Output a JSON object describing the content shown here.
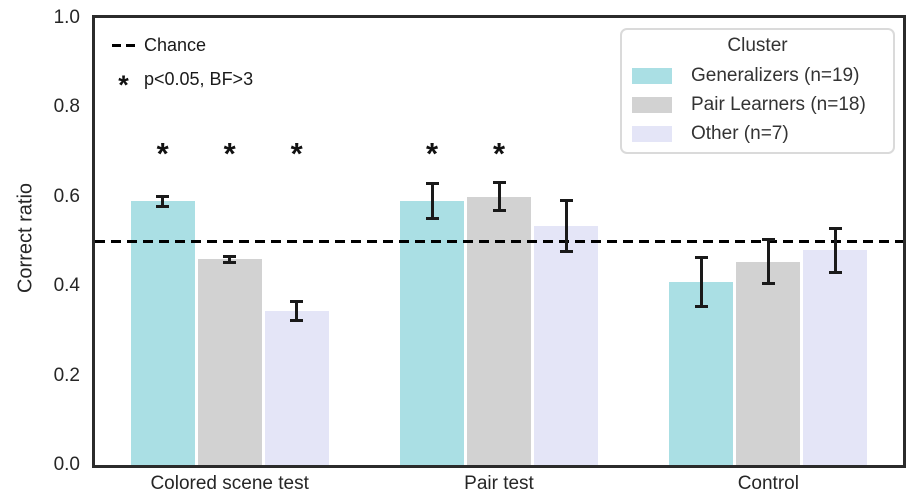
{
  "chart_data": {
    "type": "bar",
    "title": "",
    "ylabel": "Correct ratio",
    "xlabel": "",
    "ylim": [
      0.0,
      1.0
    ],
    "yticks": [
      0.0,
      0.2,
      0.4,
      0.6,
      0.8,
      1.0
    ],
    "grid": false,
    "categories": [
      "Colored scene test",
      "Pair test",
      "Control"
    ],
    "series": [
      {
        "name": "Generalizers (n=19)",
        "color": "#aadfe4",
        "values": [
          0.59,
          0.59,
          0.41
        ],
        "errors": [
          0.012,
          0.04,
          0.056
        ],
        "significant": [
          true,
          true,
          false
        ]
      },
      {
        "name": "Pair Learners (n=18)",
        "color": "#d2d2d2",
        "values": [
          0.46,
          0.6,
          0.455
        ],
        "errors": [
          0.008,
          0.032,
          0.05
        ],
        "significant": [
          true,
          true,
          false
        ]
      },
      {
        "name": "Other (n=7)",
        "color": "#e4e5f7",
        "values": [
          0.345,
          0.535,
          0.48
        ],
        "errors": [
          0.022,
          0.058,
          0.05
        ],
        "significant": [
          true,
          false,
          false
        ]
      }
    ],
    "reference_line": {
      "value": 0.5,
      "label": "Chance",
      "style": "dashed",
      "color": "#000000"
    },
    "significance_marker": "*",
    "significance_note": "p<0.05, BF>3",
    "legend": {
      "title": "Cluster",
      "position": "upper right"
    }
  },
  "colors": {
    "background": "#ffffff",
    "spine": "#2b2b2b",
    "text": "#262626",
    "error_bar": "#1a1a1a",
    "reference_line": "#000000"
  }
}
